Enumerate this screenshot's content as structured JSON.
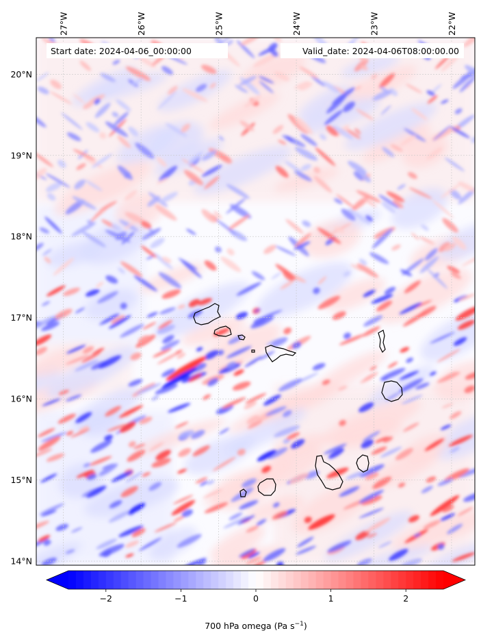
{
  "map": {
    "start_label": "Start date: 2024-04-06_00:00:00",
    "valid_label": "Valid_date: 2024-04-06T08:00:00.00",
    "lon_ticks": [
      "27°W",
      "26°W",
      "25°W",
      "24°W",
      "23°W",
      "22°W"
    ],
    "lat_ticks": [
      "20°N",
      "19°N",
      "18°N",
      "17°N",
      "16°N",
      "15°N",
      "14°N"
    ],
    "lon_values": [
      -27,
      -26,
      -25,
      -24,
      -23,
      -22
    ],
    "lat_values": [
      20,
      19,
      18,
      17,
      16,
      15,
      14
    ],
    "extent": {
      "lon": [
        -27.35,
        -21.7
      ],
      "lat": [
        13.95,
        20.45
      ]
    }
  },
  "colorbar": {
    "ticks": [
      "−2",
      "−1",
      "0",
      "1",
      "2"
    ],
    "tick_values": [
      -2,
      -1,
      0,
      1,
      2
    ],
    "range": [
      -2.5,
      2.5
    ],
    "label_main": "700 hPa omega (Pa s",
    "label_sup": "−1",
    "label_end": ")",
    "colormap": "bwr",
    "colors": {
      "negative": "#0000ff",
      "zero": "#ffffff",
      "positive": "#ff0000"
    }
  }
}
